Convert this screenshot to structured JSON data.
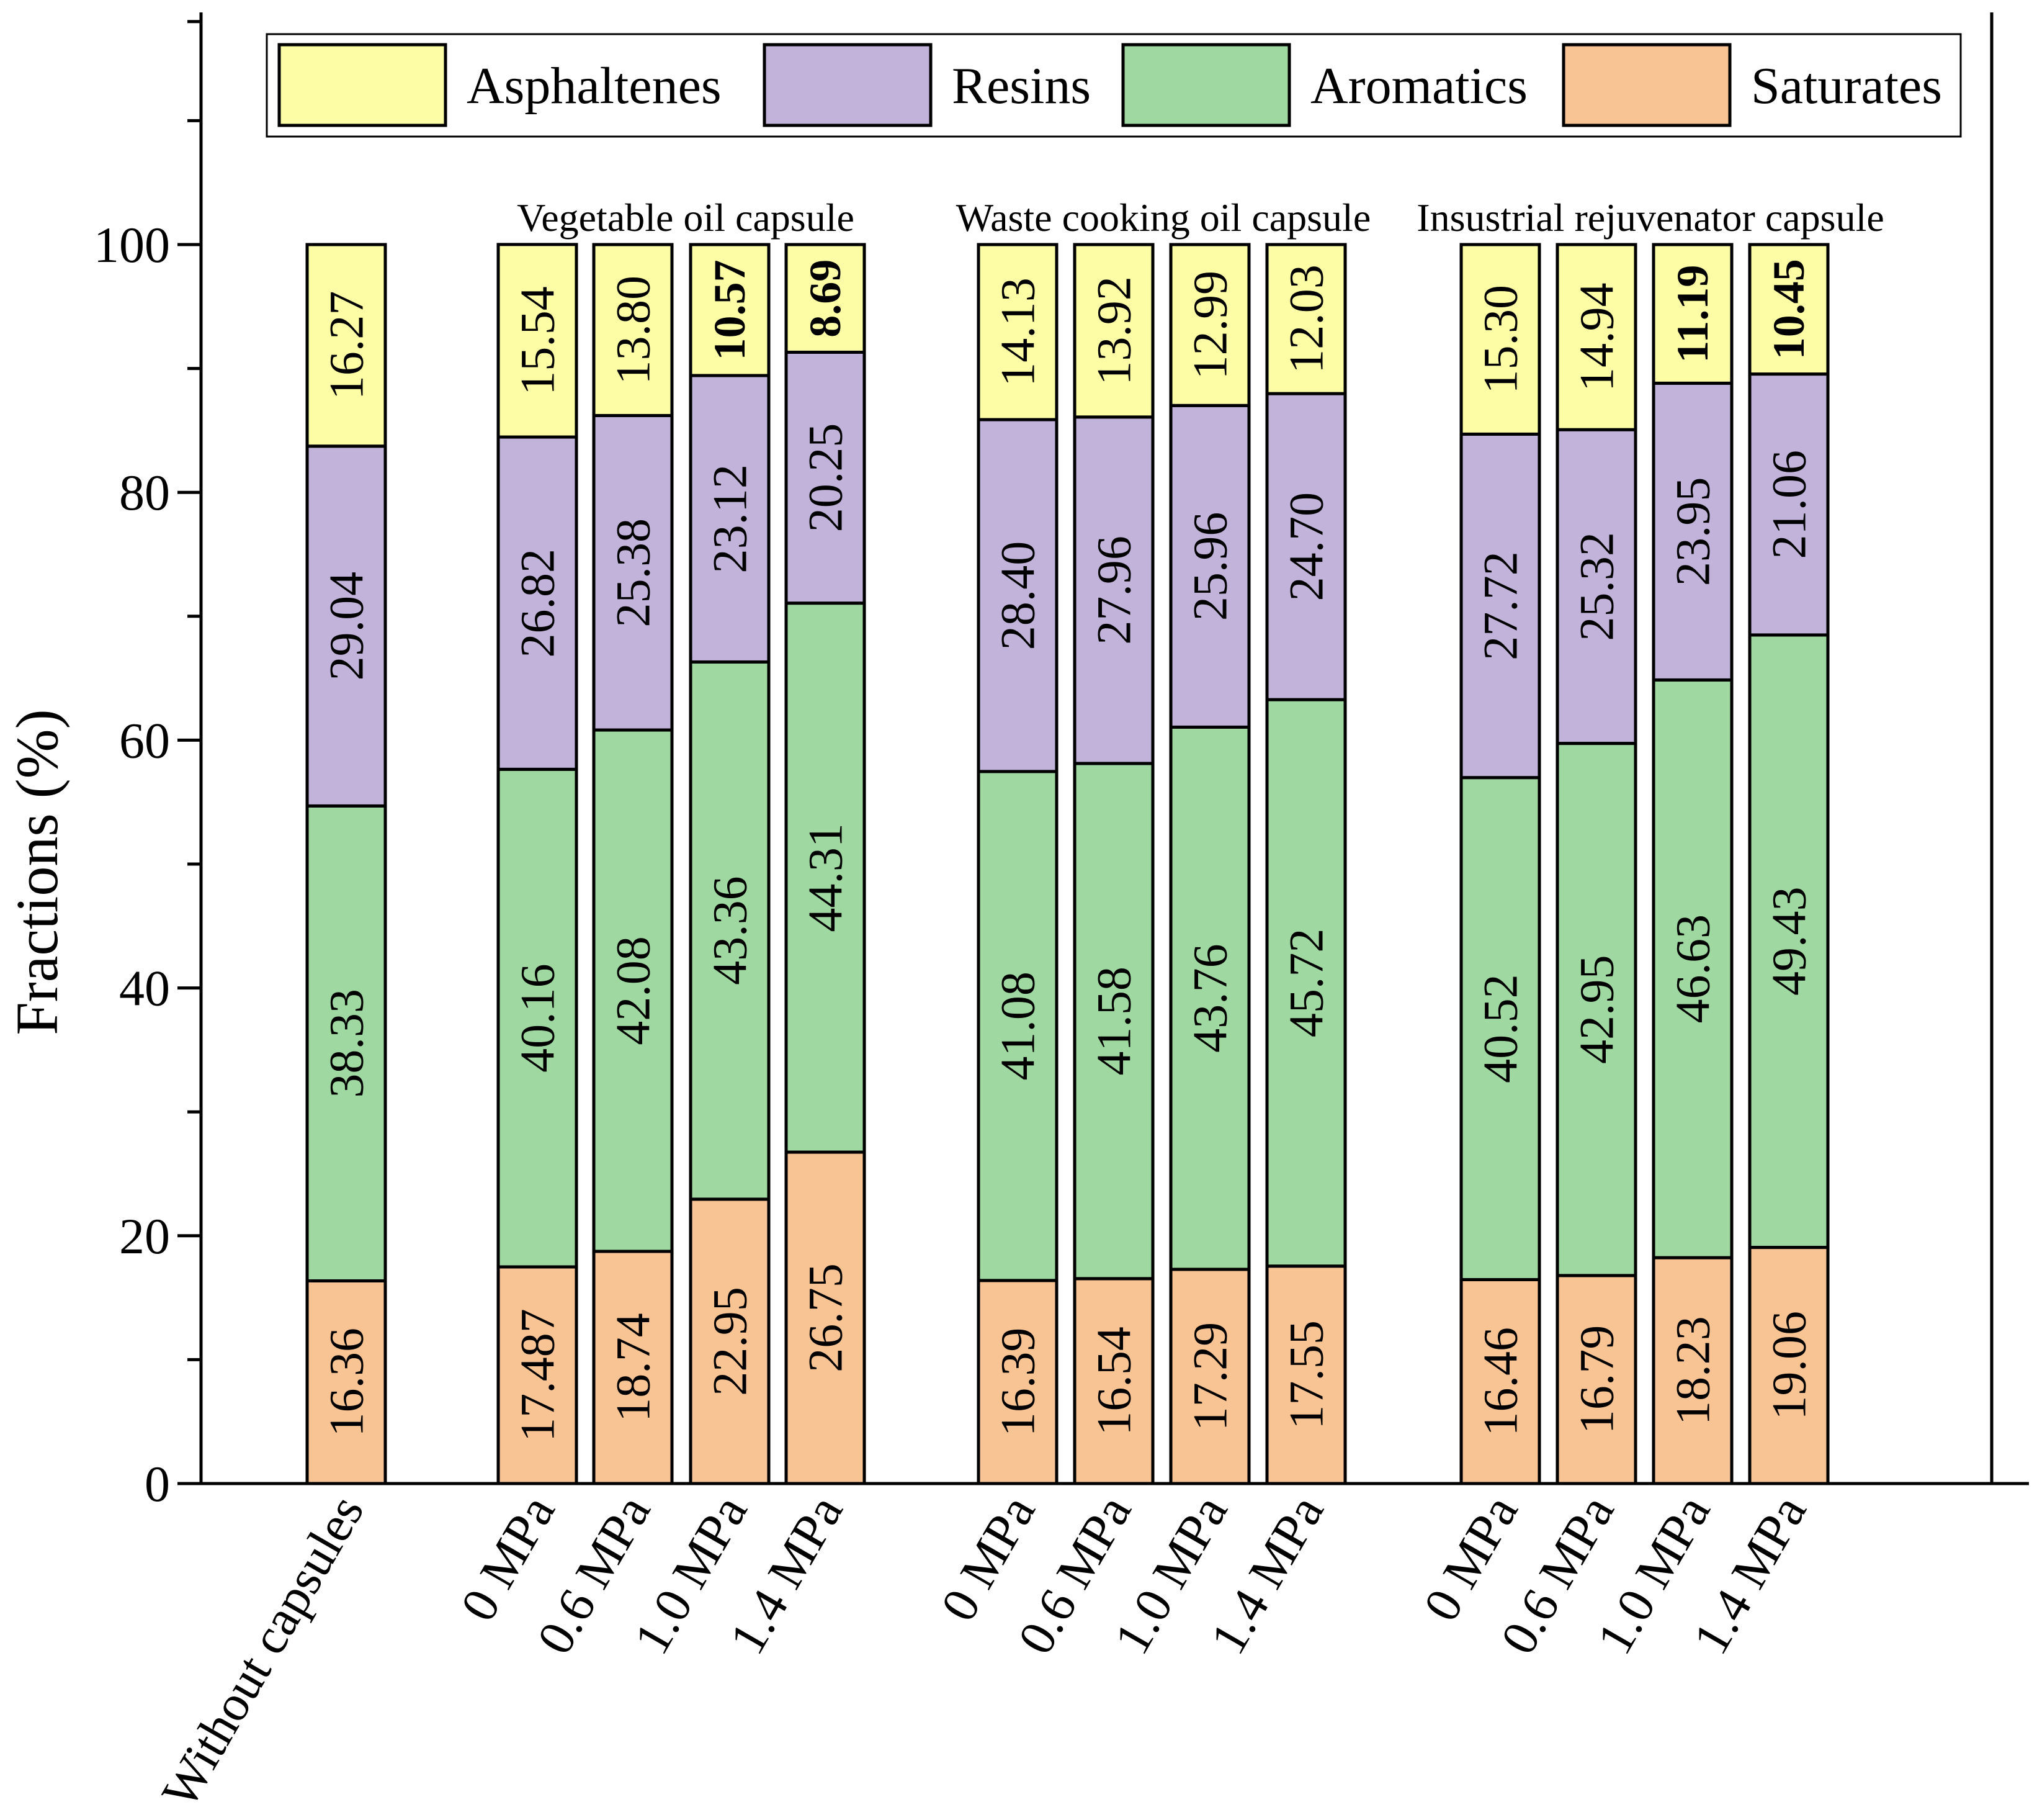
{
  "chart_data": {
    "type": "bar",
    "stacked": true,
    "title": "",
    "xlabel": "",
    "ylabel": "Fractions (%)",
    "ylim": [
      0,
      120
    ],
    "yticks": [
      0,
      20,
      40,
      60,
      80,
      100
    ],
    "grid": false,
    "legend_position": "top",
    "legend": [
      "Asphaltenes",
      "Resins",
      "Aromatics",
      "Saturates"
    ],
    "group_labels": [
      "Vegetable oil capsule",
      "Waste cooking oil capsule",
      "Insustrial rejuvenator capsule"
    ],
    "categories": [
      "Without capsules",
      "0 MPa",
      "0.6 MPa",
      "1.0 MPa",
      "1.4 MPa",
      "0 MPa",
      "0.6 MPa",
      "1.0 MPa",
      "1.4 MPa",
      "0 MPa",
      "0.6 MPa",
      "1.0 MPa",
      "1.4 MPa"
    ],
    "series": [
      {
        "name": "Saturates",
        "color": "#f9c493",
        "values": [
          16.36,
          17.487,
          18.74,
          22.95,
          26.75,
          16.39,
          16.54,
          17.29,
          17.55,
          16.46,
          16.79,
          18.23,
          19.06
        ],
        "labels": [
          "16.36",
          "17.487",
          "18.74",
          "22.95",
          "26.75",
          "16.39",
          "16.54",
          "17.29",
          "17.55",
          "16.46",
          "16.79",
          "18.23",
          "19.06"
        ]
      },
      {
        "name": "Aromatics",
        "color": "#9fd8a0",
        "values": [
          38.33,
          40.16,
          42.08,
          43.36,
          44.31,
          41.08,
          41.58,
          43.76,
          45.72,
          40.52,
          42.95,
          46.63,
          49.43
        ],
        "labels": [
          "38.33",
          "40.16",
          "42.08",
          "43.36",
          "44.31",
          "41.08",
          "41.58",
          "43.76",
          "45.72",
          "40.52",
          "42.95",
          "46.63",
          "49.43"
        ]
      },
      {
        "name": "Resins",
        "color": "#c1b3da",
        "values": [
          29.04,
          26.82,
          25.38,
          23.12,
          20.25,
          28.4,
          27.96,
          25.96,
          24.7,
          27.72,
          25.32,
          23.95,
          21.06
        ],
        "labels": [
          "29.04",
          "26.82",
          "25.38",
          "23.12",
          "20.25",
          "28.40",
          "27.96",
          "25.96",
          "24.70",
          "27.72",
          "25.32",
          "23.95",
          "21.06"
        ]
      },
      {
        "name": "Asphaltenes",
        "color": "#fdfda6",
        "values": [
          16.27,
          15.54,
          13.8,
          10.57,
          8.69,
          14.13,
          13.92,
          12.99,
          12.03,
          15.3,
          14.94,
          11.19,
          10.45
        ],
        "labels": [
          "16.27",
          "15.54",
          "13.80",
          "10.57",
          "8.69",
          "14.13",
          "13.92",
          "12.99",
          "12.03",
          "15.30",
          "14.94",
          "11.19",
          "10.45"
        ],
        "bold_labels": [
          false,
          false,
          false,
          true,
          true,
          false,
          false,
          false,
          false,
          false,
          false,
          true,
          true
        ]
      }
    ]
  }
}
